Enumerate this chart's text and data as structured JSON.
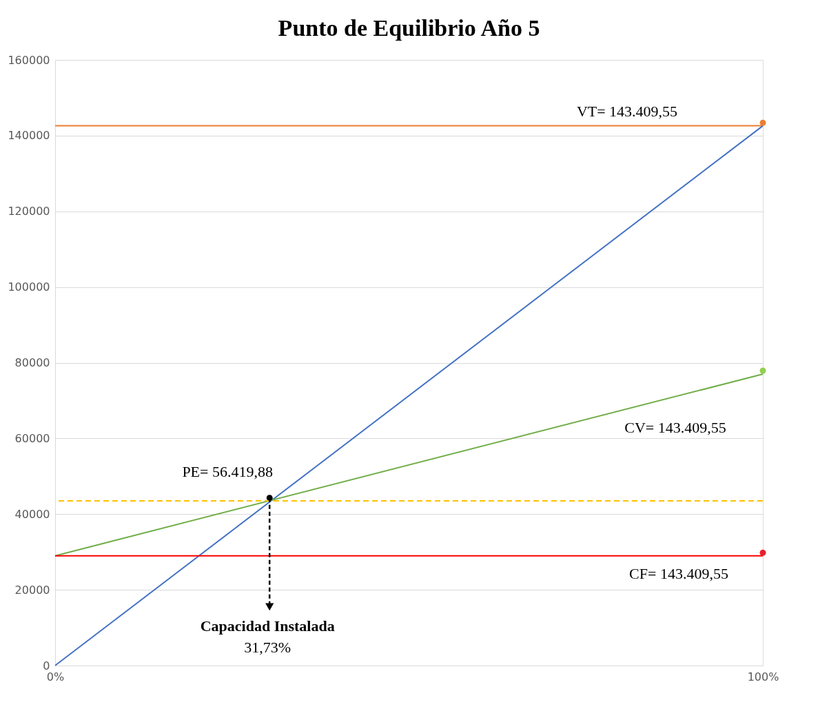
{
  "chart_data": {
    "type": "line",
    "title": "Punto de Equilibrio Año 5",
    "xlim": [
      0,
      100
    ],
    "xticks": [
      {
        "value": 0,
        "label": "0%"
      },
      {
        "value": 100,
        "label": "100%"
      }
    ],
    "ylim": [
      0,
      160000
    ],
    "yticks": [
      0,
      20000,
      40000,
      60000,
      80000,
      100000,
      120000,
      140000,
      160000
    ],
    "grid": "y",
    "series": [
      {
        "type": "line",
        "color": "#ed7d31",
        "x": [
          0,
          100
        ],
        "values": [
          142600,
          142600
        ]
      },
      {
        "type": "line",
        "color": "#4472c4",
        "x": [
          0,
          100
        ],
        "values": [
          0,
          142600
        ]
      },
      {
        "type": "line",
        "color": "#70ad47",
        "x": [
          0,
          100
        ],
        "values": [
          29000,
          77000
        ]
      },
      {
        "type": "line",
        "color": "#ff0000",
        "x": [
          0,
          100
        ],
        "values": [
          29000,
          29000
        ]
      },
      {
        "type": "scatter",
        "color": "#ed7d31",
        "x": [
          100
        ],
        "values": [
          143400
        ]
      },
      {
        "type": "scatter",
        "color": "#92d050",
        "x": [
          100
        ],
        "values": [
          77900
        ]
      },
      {
        "type": "scatter",
        "color": "#e8202a",
        "x": [
          100
        ],
        "values": [
          29800
        ]
      },
      {
        "type": "scatter",
        "color": "#000000",
        "x": [
          30.3
        ],
        "values": [
          44300
        ]
      }
    ],
    "ref_lines": [
      {
        "axis": "y",
        "value": 43500,
        "color": "#ffc000",
        "line_style": "dashed"
      }
    ],
    "annotations": [
      "PE= 56.419,88",
      "VT= 143.409,55",
      "CV= 143.409,55",
      "CF= 143.409,55",
      "Capacidad Instalada",
      "31,73%"
    ]
  }
}
